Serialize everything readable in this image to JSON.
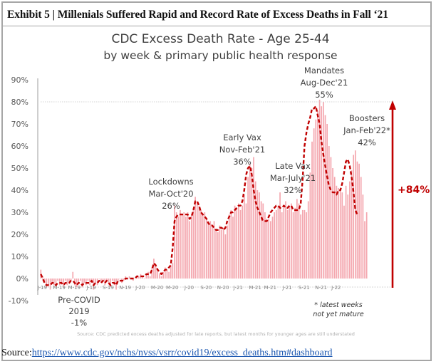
{
  "exhibit": {
    "title": "Exhibit 5 | Millenials Suffered Rapid and Record Rate of Excess Deaths in Fall ‘21"
  },
  "source": {
    "label": "Source:",
    "url_text": "https://www.cdc.gov/nchs/nvss/vsrr/covid19/excess_deaths.htm#dashboard"
  },
  "colors": {
    "bar": "#f4a6ae",
    "trend": "#c00000",
    "arrow": "#c00000",
    "axis": "#c8c8c8",
    "text": "#404040"
  },
  "chart_data": {
    "type": "bar",
    "title": "CDC Excess Death Rate - Age 25-44",
    "subtitle": "by week & primary public health response",
    "xlabel": "",
    "ylabel": "",
    "ylim": [
      -10,
      90
    ],
    "yticks": [
      -10,
      0,
      10,
      20,
      30,
      40,
      50,
      60,
      70,
      80,
      90
    ],
    "ytick_labels": [
      "-10%",
      "0%",
      "10%",
      "20%",
      "30%",
      "40%",
      "50%",
      "60%",
      "70%",
      "80%",
      "90%"
    ],
    "x_tick_labels": [
      "J-19",
      "M-19",
      "M-19",
      "J-19",
      "S-19",
      "N-19",
      "J-20",
      "M-20",
      "M-20",
      "J-20",
      "S-20",
      "N-20",
      "J-21",
      "M-21",
      "M-21",
      "J-21",
      "S-21",
      "N-21",
      "J-22"
    ],
    "x_tick_week_index": [
      0,
      9,
      17,
      26,
      35,
      44,
      52,
      61,
      69,
      78,
      87,
      96,
      104,
      113,
      121,
      130,
      139,
      148,
      156
    ],
    "grid": false,
    "reference_line_value": 80,
    "series": [
      {
        "name": "Weekly excess death rate",
        "kind": "bar",
        "values": [
          4,
          1,
          -2,
          -4,
          -3,
          -5,
          -2,
          -3,
          -4,
          -1,
          -3,
          -2,
          -4,
          -1,
          -3,
          -2,
          -1,
          3,
          -3,
          -4,
          -2,
          -1,
          -4,
          -2,
          -3,
          -1,
          -3,
          -1,
          -5,
          -2,
          -3,
          0,
          -2,
          -1,
          -3,
          -1,
          -2,
          -4,
          -1,
          -3,
          -5,
          -1,
          0,
          -2,
          -1,
          1,
          0,
          1,
          0,
          -1,
          0,
          1,
          1,
          2,
          1,
          0,
          2,
          3,
          1,
          5,
          9,
          6,
          4,
          2,
          1,
          3,
          5,
          4,
          3,
          6,
          7,
          33,
          30,
          28,
          31,
          29,
          30,
          28,
          30,
          26,
          29,
          32,
          37,
          35,
          33,
          31,
          29,
          30,
          27,
          25,
          26,
          24,
          26,
          22,
          21,
          24,
          22,
          23,
          20,
          24,
          29,
          31,
          28,
          33,
          32,
          34,
          31,
          33,
          38,
          34,
          46,
          52,
          50,
          55,
          44,
          40,
          39,
          35,
          34,
          30,
          27,
          27,
          26,
          28,
          30,
          31,
          33,
          39,
          30,
          32,
          35,
          31,
          33,
          34,
          30,
          32,
          36,
          34,
          29,
          31,
          31,
          30,
          35,
          48,
          62,
          68,
          72,
          76,
          81,
          78,
          80,
          74,
          70,
          60,
          55,
          50,
          46,
          42,
          41,
          40,
          39,
          33,
          42,
          38,
          44,
          49,
          56,
          58,
          53,
          52,
          46,
          38,
          26,
          30
        ]
      },
      {
        "name": "Trend",
        "kind": "dashed-line",
        "values": [
          2,
          0,
          -2,
          -3,
          -3,
          -3,
          -2,
          -2,
          -3,
          -2,
          -2,
          -2,
          -3,
          -2,
          -2,
          -2,
          -1,
          -1,
          -2,
          -3,
          -2,
          -2,
          -3,
          -2,
          -2,
          -2,
          -2,
          -1,
          -3,
          -2,
          -2,
          -1,
          -2,
          -1,
          -2,
          -1,
          -2,
          -3,
          -2,
          -2,
          -3,
          -1,
          -1,
          -1,
          -1,
          0,
          0,
          0,
          0,
          0,
          0,
          1,
          1,
          1,
          1,
          1,
          2,
          2,
          2,
          4,
          7,
          6,
          4,
          3,
          2,
          3,
          4,
          4,
          5,
          6,
          14,
          26,
          28,
          29,
          29,
          29,
          29,
          29,
          29,
          27,
          28,
          31,
          35,
          35,
          33,
          30,
          29,
          28,
          27,
          25,
          24,
          24,
          23,
          22,
          22,
          23,
          23,
          22,
          23,
          26,
          28,
          30,
          30,
          31,
          32,
          33,
          33,
          35,
          40,
          47,
          50,
          51,
          47,
          40,
          35,
          32,
          30,
          28,
          26,
          26,
          26,
          28,
          30,
          31,
          32,
          33,
          33,
          32,
          32,
          33,
          32,
          32,
          33,
          33,
          31,
          31,
          31,
          31,
          34,
          45,
          60,
          66,
          70,
          73,
          77,
          77,
          78,
          74,
          70,
          62,
          56,
          51,
          46,
          42,
          40,
          39,
          39,
          38,
          40,
          40,
          43,
          48,
          53,
          54,
          51,
          46,
          39,
          31,
          29
        ]
      }
    ],
    "annotations": [
      {
        "lines": [
          "Pre-COVID",
          "2019",
          "-1%"
        ],
        "period": "2019",
        "value": -1
      },
      {
        "lines": [
          "Lockdowns",
          "Mar-Oct'20",
          "26%"
        ],
        "period": "Mar-Oct'20",
        "value": 26
      },
      {
        "lines": [
          "Early Vax",
          "Nov-Feb'21",
          "36%"
        ],
        "period": "Nov-Feb'21",
        "value": 36
      },
      {
        "lines": [
          "Late Vax",
          "Mar-July'21",
          "32%"
        ],
        "period": "Mar-July'21",
        "value": 32
      },
      {
        "lines": [
          "Mandates",
          "Aug-Dec'21",
          "55%"
        ],
        "period": "Aug-Dec'21",
        "value": 55
      },
      {
        "lines": [
          "Boosters",
          "Jan-Feb'22*",
          "42%"
        ],
        "period": "Jan-Feb'22",
        "value": 42
      }
    ],
    "change_callout": "+84%",
    "note_lines": [
      "* latest weeks",
      "not yet mature"
    ],
    "footnote": "Source: CDC predicted excess deaths adjusted for late reports, but latest months for younger ages are still understated"
  }
}
